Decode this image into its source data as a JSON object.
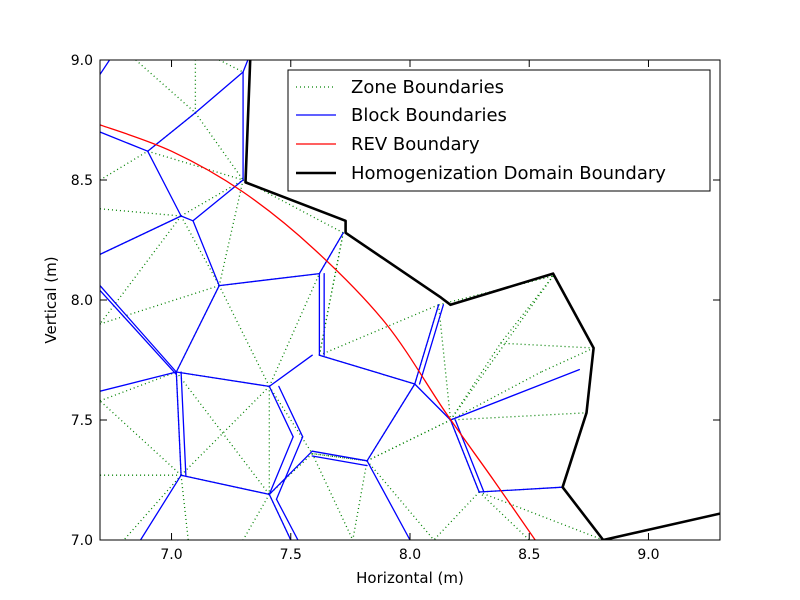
{
  "chart_data": {
    "type": "line",
    "title": "",
    "xlabel": "Horizontal (m)",
    "ylabel": "Vertical (m)",
    "xlim": [
      6.7,
      9.3
    ],
    "ylim": [
      7.0,
      9.0
    ],
    "xticks": [
      7.0,
      7.5,
      8.0,
      8.5,
      9.0
    ],
    "yticks": [
      7.0,
      7.5,
      8.0,
      8.5,
      9.0
    ],
    "xtick_labels": [
      "7.0",
      "7.5",
      "8.0",
      "8.5",
      "9.0"
    ],
    "ytick_labels": [
      "7.0",
      "7.5",
      "8.0",
      "8.5",
      "9.0"
    ],
    "grid": false,
    "legend_position": "top-right",
    "colors": {
      "zone": "#008000",
      "block": "#0000ff",
      "rev": "#ff0000",
      "domain": "#000000"
    },
    "series": [
      {
        "name": "Zone Boundaries",
        "style": "dotted",
        "color": "#008000",
        "segments": [
          [
            [
              6.7,
              8.5
            ],
            [
              6.9,
              8.62
            ]
          ],
          [
            [
              6.9,
              8.62
            ],
            [
              7.3,
              8.5
            ]
          ],
          [
            [
              6.7,
              8.38
            ],
            [
              7.04,
              8.35
            ]
          ],
          [
            [
              7.04,
              8.35
            ],
            [
              7.3,
              8.5
            ]
          ],
          [
            [
              6.7,
              8.19
            ],
            [
              7.04,
              8.35
            ]
          ],
          [
            [
              7.04,
              8.35
            ],
            [
              7.2,
              8.06
            ]
          ],
          [
            [
              7.04,
              8.35
            ],
            [
              6.7,
              7.9
            ]
          ],
          [
            [
              6.7,
              7.9
            ],
            [
              7.2,
              8.06
            ]
          ],
          [
            [
              7.2,
              8.06
            ],
            [
              7.62,
              8.11
            ]
          ],
          [
            [
              7.62,
              8.11
            ],
            [
              7.72,
              8.28
            ]
          ],
          [
            [
              7.72,
              8.28
            ],
            [
              7.62,
              7.77
            ]
          ],
          [
            [
              7.62,
              7.77
            ],
            [
              7.72,
              8.28
            ]
          ],
          [
            [
              7.62,
              7.77
            ],
            [
              8.12,
              7.98
            ]
          ],
          [
            [
              8.12,
              7.98
            ],
            [
              8.17,
              7.5
            ]
          ],
          [
            [
              8.17,
              7.5
            ],
            [
              8.6,
              8.1
            ]
          ],
          [
            [
              8.6,
              8.1
            ],
            [
              8.38,
              7.82
            ]
          ],
          [
            [
              8.38,
              7.82
            ],
            [
              8.77,
              7.8
            ]
          ],
          [
            [
              8.77,
              7.8
            ],
            [
              8.55,
              7.7
            ]
          ],
          [
            [
              8.55,
              7.7
            ],
            [
              8.17,
              7.5
            ]
          ],
          [
            [
              8.17,
              7.5
            ],
            [
              8.74,
              7.53
            ]
          ],
          [
            [
              8.17,
              7.5
            ],
            [
              8.38,
              7.82
            ]
          ],
          [
            [
              8.17,
              7.5
            ],
            [
              8.29,
              7.2
            ]
          ],
          [
            [
              8.29,
              7.2
            ],
            [
              8.64,
              7.22
            ]
          ],
          [
            [
              8.64,
              7.22
            ],
            [
              8.81,
              7.0
            ]
          ],
          [
            [
              8.29,
              7.2
            ],
            [
              8.81,
              7.0
            ]
          ],
          [
            [
              8.29,
              7.2
            ],
            [
              8.1,
              7.0
            ]
          ],
          [
            [
              8.29,
              7.2
            ],
            [
              8.5,
              7.0
            ]
          ],
          [
            [
              8.17,
              7.5
            ],
            [
              7.82,
              7.33
            ]
          ],
          [
            [
              7.82,
              7.33
            ],
            [
              8.17,
              7.5
            ]
          ],
          [
            [
              7.82,
              7.33
            ],
            [
              8.02,
              7.65
            ]
          ],
          [
            [
              8.02,
              7.65
            ],
            [
              7.62,
              7.77
            ]
          ],
          [
            [
              7.82,
              7.33
            ],
            [
              7.59,
              7.36
            ]
          ],
          [
            [
              7.59,
              7.36
            ],
            [
              7.82,
              7.33
            ]
          ],
          [
            [
              7.59,
              7.36
            ],
            [
              7.41,
              7.19
            ]
          ],
          [
            [
              7.41,
              7.19
            ],
            [
              7.04,
              7.27
            ]
          ],
          [
            [
              7.04,
              7.27
            ],
            [
              6.7,
              7.27
            ]
          ],
          [
            [
              7.04,
              7.27
            ],
            [
              6.8,
              7.0
            ]
          ],
          [
            [
              7.04,
              7.27
            ],
            [
              7.07,
              7.0
            ]
          ],
          [
            [
              7.04,
              7.27
            ],
            [
              6.7,
              7.58
            ]
          ],
          [
            [
              6.7,
              7.58
            ],
            [
              7.02,
              7.7
            ]
          ],
          [
            [
              7.02,
              7.7
            ],
            [
              7.04,
              7.27
            ]
          ],
          [
            [
              7.02,
              7.7
            ],
            [
              7.2,
              8.06
            ]
          ],
          [
            [
              7.02,
              7.7
            ],
            [
              7.41,
              7.64
            ]
          ],
          [
            [
              7.41,
              7.64
            ],
            [
              7.2,
              8.06
            ]
          ],
          [
            [
              7.41,
              7.64
            ],
            [
              7.62,
              8.11
            ]
          ],
          [
            [
              7.41,
              7.64
            ],
            [
              7.59,
              7.36
            ]
          ],
          [
            [
              7.41,
              7.64
            ],
            [
              7.41,
              7.19
            ]
          ],
          [
            [
              7.41,
              7.64
            ],
            [
              7.04,
              7.27
            ]
          ],
          [
            [
              7.02,
              7.7
            ],
            [
              7.41,
              7.19
            ]
          ],
          [
            [
              7.41,
              7.19
            ],
            [
              7.3,
              7.0
            ]
          ],
          [
            [
              7.41,
              7.19
            ],
            [
              7.5,
              7.0
            ]
          ],
          [
            [
              7.59,
              7.36
            ],
            [
              7.76,
              7.0
            ]
          ],
          [
            [
              7.82,
              7.33
            ],
            [
              7.76,
              7.0
            ]
          ],
          [
            [
              7.82,
              7.33
            ],
            [
              8.1,
              7.0
            ]
          ],
          [
            [
              6.85,
              9.0
            ],
            [
              7.1,
              8.78
            ]
          ],
          [
            [
              7.1,
              8.78
            ],
            [
              7.3,
              8.5
            ]
          ],
          [
            [
              7.1,
              8.78
            ],
            [
              6.9,
              8.62
            ]
          ],
          [
            [
              7.1,
              8.78
            ],
            [
              7.1,
              9.0
            ]
          ],
          [
            [
              7.3,
              8.5
            ],
            [
              7.2,
              8.06
            ]
          ],
          [
            [
              7.3,
              8.5
            ],
            [
              7.72,
              8.28
            ]
          ],
          [
            [
              7.2,
              9.0
            ],
            [
              7.3,
              8.95
            ]
          ],
          [
            [
              8.12,
              7.98
            ],
            [
              8.6,
              8.1
            ]
          ],
          [
            [
              8.02,
              7.65
            ],
            [
              8.12,
              7.98
            ]
          ]
        ]
      },
      {
        "name": "Block Boundaries",
        "style": "solid",
        "color": "#0000ff",
        "segments": [
          [
            [
              6.7,
              8.94
            ],
            [
              6.74,
              9.0
            ]
          ],
          [
            [
              6.7,
              8.7
            ],
            [
              6.9,
              8.62
            ]
          ],
          [
            [
              6.9,
              8.62
            ],
            [
              7.1,
              8.78
            ]
          ],
          [
            [
              7.1,
              8.78
            ],
            [
              7.3,
              8.95
            ]
          ],
          [
            [
              7.3,
              8.95
            ],
            [
              7.32,
              9.0
            ]
          ],
          [
            [
              7.3,
              8.95
            ],
            [
              7.3,
              8.5
            ]
          ],
          [
            [
              7.3,
              8.5
            ],
            [
              7.09,
              8.33
            ]
          ],
          [
            [
              6.9,
              8.62
            ],
            [
              7.04,
              8.35
            ]
          ],
          [
            [
              7.04,
              8.35
            ],
            [
              7.09,
              8.33
            ]
          ],
          [
            [
              7.04,
              8.35
            ],
            [
              6.7,
              8.19
            ]
          ],
          [
            [
              7.09,
              8.33
            ],
            [
              7.2,
              8.06
            ]
          ],
          [
            [
              7.2,
              8.06
            ],
            [
              7.62,
              8.11
            ]
          ],
          [
            [
              7.62,
              8.11
            ],
            [
              7.72,
              8.28
            ]
          ],
          [
            [
              7.62,
              8.11
            ],
            [
              7.62,
              7.77
            ]
          ],
          [
            [
              7.64,
              8.11
            ],
            [
              7.64,
              7.77
            ]
          ],
          [
            [
              7.2,
              8.06
            ],
            [
              7.02,
              7.7
            ]
          ],
          [
            [
              6.7,
              8.06
            ],
            [
              7.02,
              7.7
            ]
          ],
          [
            [
              6.7,
              8.04
            ],
            [
              7.02,
              7.69
            ]
          ],
          [
            [
              7.02,
              7.7
            ],
            [
              6.7,
              7.62
            ]
          ],
          [
            [
              7.02,
              7.7
            ],
            [
              7.41,
              7.64
            ]
          ],
          [
            [
              7.02,
              7.7
            ],
            [
              7.04,
              7.27
            ]
          ],
          [
            [
              7.04,
              7.7
            ],
            [
              7.06,
              7.27
            ]
          ],
          [
            [
              7.04,
              7.27
            ],
            [
              7.41,
              7.19
            ]
          ],
          [
            [
              7.04,
              7.27
            ],
            [
              6.87,
              7.0
            ]
          ],
          [
            [
              7.41,
              7.19
            ],
            [
              7.59,
              7.37
            ]
          ],
          [
            [
              7.41,
              7.64
            ],
            [
              7.59,
              7.77
            ]
          ],
          [
            [
              7.41,
              7.64
            ],
            [
              7.51,
              7.43
            ]
          ],
          [
            [
              7.51,
              7.43
            ],
            [
              7.41,
              7.19
            ]
          ],
          [
            [
              7.45,
              7.64
            ],
            [
              7.55,
              7.43
            ]
          ],
          [
            [
              7.55,
              7.43
            ],
            [
              7.44,
              7.17
            ]
          ],
          [
            [
              7.41,
              7.19
            ],
            [
              7.5,
              7.0
            ]
          ],
          [
            [
              7.44,
              7.17
            ],
            [
              7.53,
              7.0
            ]
          ],
          [
            [
              7.59,
              7.37
            ],
            [
              7.82,
              7.33
            ]
          ],
          [
            [
              7.59,
              7.35
            ],
            [
              7.82,
              7.31
            ]
          ],
          [
            [
              7.62,
              7.77
            ],
            [
              8.02,
              7.65
            ]
          ],
          [
            [
              8.02,
              7.65
            ],
            [
              8.12,
              7.98
            ]
          ],
          [
            [
              8.04,
              7.65
            ],
            [
              8.14,
              7.98
            ]
          ],
          [
            [
              8.02,
              7.65
            ],
            [
              7.82,
              7.33
            ]
          ],
          [
            [
              7.82,
              7.33
            ],
            [
              8.0,
              7.0
            ]
          ],
          [
            [
              8.02,
              7.65
            ],
            [
              8.17,
              7.5
            ]
          ],
          [
            [
              8.17,
              7.5
            ],
            [
              8.29,
              7.2
            ]
          ],
          [
            [
              8.19,
              7.5
            ],
            [
              8.31,
              7.2
            ]
          ],
          [
            [
              8.29,
              7.2
            ],
            [
              8.64,
              7.22
            ]
          ],
          [
            [
              8.17,
              7.5
            ],
            [
              8.71,
              7.71
            ]
          ]
        ]
      },
      {
        "name": "REV Boundary",
        "style": "solid",
        "color": "#ff0000",
        "points": [
          [
            6.7,
            8.73
          ],
          [
            7.0,
            8.62
          ],
          [
            7.3,
            8.45
          ],
          [
            7.6,
            8.21
          ],
          [
            7.9,
            7.9
          ],
          [
            8.15,
            7.53
          ],
          [
            8.35,
            7.25
          ],
          [
            8.56,
            6.95
          ]
        ]
      },
      {
        "name": "Homogenization Domain Boundary",
        "style": "solid-thick",
        "color": "#000000",
        "points": [
          [
            7.33,
            9.0
          ],
          [
            7.31,
            8.49
          ],
          [
            7.73,
            8.33
          ],
          [
            7.73,
            8.28
          ],
          [
            8.13,
            8.01
          ],
          [
            8.17,
            7.98
          ],
          [
            8.6,
            8.11
          ],
          [
            8.77,
            7.8
          ],
          [
            8.74,
            7.53
          ],
          [
            8.64,
            7.22
          ],
          [
            8.81,
            7.0
          ],
          [
            9.3,
            7.11
          ]
        ]
      }
    ]
  }
}
